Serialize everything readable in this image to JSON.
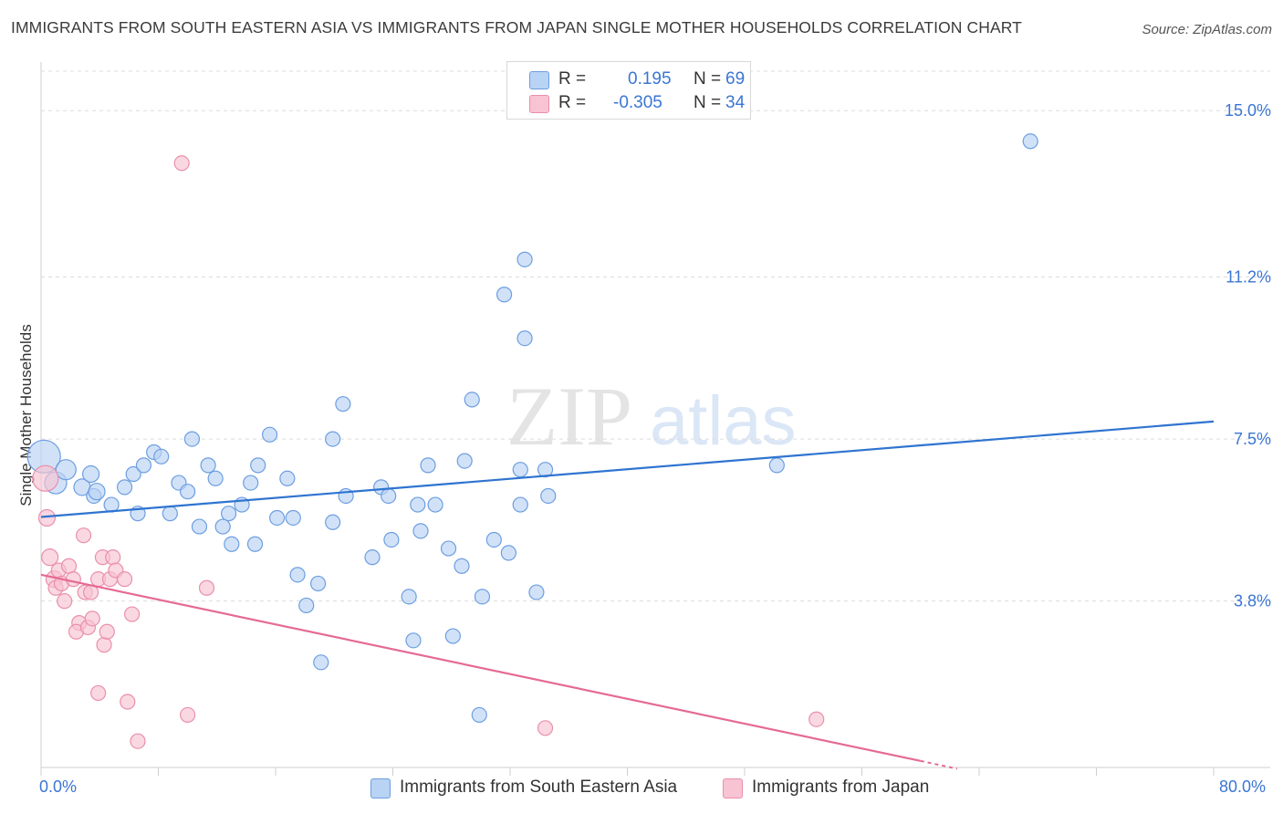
{
  "title": "IMMIGRANTS FROM SOUTH EASTERN ASIA VS IMMIGRANTS FROM JAPAN SINGLE MOTHER HOUSEHOLDS CORRELATION CHART",
  "source": "Source: ZipAtlas.com",
  "watermark": {
    "zip": "ZIP",
    "atlas": "atlas"
  },
  "colors": {
    "blue_fill": "#b8d3f4",
    "blue_stroke": "#6d9ee0",
    "blue_line": "#2f74d0",
    "pink_fill": "#f8c3d3",
    "pink_stroke": "#ea8fab",
    "pink_line": "#e56a95",
    "axis_label": "#3a76d4",
    "grid": "#dcdcdc"
  },
  "legend": {
    "rows": [
      {
        "r_label": "R =",
        "r_value": "0.195",
        "n_label": "N =",
        "n_value": "69",
        "color": "#b8d3f4",
        "border": "#6d9ee0"
      },
      {
        "r_label": "R =",
        "r_value": "-0.305",
        "n_label": "N =",
        "n_value": "34",
        "color": "#f8c3d3",
        "border": "#ea8fab"
      }
    ]
  },
  "bottom_legend": [
    {
      "label": "Immigrants from South Eastern Asia",
      "color": "#b8d3f4",
      "border": "#6d9ee0"
    },
    {
      "label": "Immigrants from Japan",
      "color": "#f8c3d3",
      "border": "#ea8fab"
    }
  ],
  "chart_data": {
    "type": "scatter",
    "title": "IMMIGRANTS FROM SOUTH EASTERN ASIA VS IMMIGRANTS FROM JAPAN SINGLE MOTHER HOUSEHOLDS CORRELATION CHART",
    "xlabel": "",
    "ylabel": "Single Mother Households",
    "xlim": [
      0,
      80
    ],
    "ylim": [
      0,
      15.9
    ],
    "x_tick_labels": [
      "0.0%",
      "80.0%"
    ],
    "y_ticks": [
      3.8,
      7.5,
      11.2,
      15.0
    ],
    "y_tick_labels": [
      "3.8%",
      "7.5%",
      "11.2%",
      "15.0%"
    ],
    "grid": "horizontal dashed",
    "legend_position": "top-center",
    "series": [
      {
        "name": "Immigrants from South Eastern Asia",
        "R": 0.195,
        "N": 69,
        "trend": {
          "x": [
            0,
            80
          ],
          "y": [
            5.72,
            7.9
          ]
        },
        "points": [
          [
            0.2,
            7.1,
            18
          ],
          [
            1.0,
            6.5,
            12
          ],
          [
            1.7,
            6.8,
            11
          ],
          [
            2.8,
            6.4,
            9
          ],
          [
            3.4,
            6.7,
            9
          ],
          [
            3.6,
            6.2,
            8
          ],
          [
            4.8,
            6.0,
            8
          ],
          [
            3.8,
            6.3,
            9
          ],
          [
            5.7,
            6.4,
            8
          ],
          [
            6.3,
            6.7,
            8
          ],
          [
            7.0,
            6.9,
            8
          ],
          [
            6.6,
            5.8,
            8
          ],
          [
            7.7,
            7.2,
            8
          ],
          [
            8.2,
            7.1,
            8
          ],
          [
            9.4,
            6.5,
            8
          ],
          [
            10.0,
            6.3,
            8
          ],
          [
            8.8,
            5.8,
            8
          ],
          [
            10.3,
            7.5,
            8
          ],
          [
            11.4,
            6.9,
            8
          ],
          [
            11.9,
            6.6,
            8
          ],
          [
            12.8,
            5.8,
            8
          ],
          [
            10.8,
            5.5,
            8
          ],
          [
            12.4,
            5.5,
            8
          ],
          [
            13.7,
            6.0,
            8
          ],
          [
            13.0,
            5.1,
            8
          ],
          [
            14.3,
            6.5,
            8
          ],
          [
            14.8,
            6.9,
            8
          ],
          [
            15.6,
            7.6,
            8
          ],
          [
            16.8,
            6.6,
            8
          ],
          [
            16.1,
            5.7,
            8
          ],
          [
            17.2,
            5.7,
            8
          ],
          [
            14.6,
            5.1,
            8
          ],
          [
            17.5,
            4.4,
            8
          ],
          [
            18.1,
            3.7,
            8
          ],
          [
            18.9,
            4.2,
            8
          ],
          [
            19.9,
            5.6,
            8
          ],
          [
            20.8,
            6.2,
            8
          ],
          [
            19.9,
            7.5,
            8
          ],
          [
            20.6,
            8.3,
            8
          ],
          [
            22.6,
            4.8,
            8
          ],
          [
            23.2,
            6.4,
            8
          ],
          [
            23.7,
            6.2,
            8
          ],
          [
            23.9,
            5.2,
            8
          ],
          [
            25.1,
            3.9,
            8
          ],
          [
            25.4,
            2.9,
            8
          ],
          [
            25.7,
            6.0,
            8
          ],
          [
            25.9,
            5.4,
            8
          ],
          [
            26.4,
            6.9,
            8
          ],
          [
            26.9,
            6.0,
            8
          ],
          [
            27.8,
            5.0,
            8
          ],
          [
            28.1,
            3.0,
            8
          ],
          [
            28.7,
            4.6,
            8
          ],
          [
            28.9,
            7.0,
            8
          ],
          [
            30.1,
            3.9,
            8
          ],
          [
            30.9,
            5.2,
            8
          ],
          [
            31.9,
            4.9,
            8
          ],
          [
            32.7,
            6.8,
            8
          ],
          [
            32.7,
            6.0,
            8
          ],
          [
            33.8,
            4.0,
            8
          ],
          [
            19.1,
            2.4,
            8
          ],
          [
            29.4,
            8.4,
            8
          ],
          [
            31.6,
            10.8,
            8
          ],
          [
            33.0,
            9.8,
            8
          ],
          [
            34.4,
            6.8,
            8
          ],
          [
            29.9,
            1.2,
            8
          ],
          [
            34.6,
            6.2,
            8
          ],
          [
            33.0,
            11.6,
            8
          ],
          [
            50.2,
            6.9,
            8
          ],
          [
            67.5,
            14.3,
            8
          ]
        ]
      },
      {
        "name": "Immigrants from Japan",
        "R": -0.305,
        "N": 34,
        "trend": {
          "x": [
            0,
            60
          ],
          "y": [
            4.4,
            0.15
          ]
        },
        "trend_dashed": {
          "x": [
            60,
            62.5
          ],
          "y": [
            0.15,
            -0.03
          ]
        },
        "points": [
          [
            0.3,
            6.6,
            14
          ],
          [
            0.4,
            5.7,
            9
          ],
          [
            0.6,
            4.8,
            9
          ],
          [
            0.9,
            4.3,
            9
          ],
          [
            1.2,
            4.5,
            8
          ],
          [
            1.0,
            4.1,
            8
          ],
          [
            1.4,
            4.2,
            8
          ],
          [
            1.6,
            3.8,
            8
          ],
          [
            1.9,
            4.6,
            8
          ],
          [
            2.2,
            4.3,
            8
          ],
          [
            2.6,
            3.3,
            8
          ],
          [
            2.4,
            3.1,
            8
          ],
          [
            2.9,
            5.3,
            8
          ],
          [
            3.0,
            4.0,
            8
          ],
          [
            3.2,
            3.2,
            8
          ],
          [
            3.4,
            4.0,
            8
          ],
          [
            3.5,
            3.4,
            8
          ],
          [
            3.9,
            4.3,
            8
          ],
          [
            4.2,
            4.8,
            8
          ],
          [
            4.3,
            2.8,
            8
          ],
          [
            4.5,
            3.1,
            8
          ],
          [
            4.7,
            4.3,
            8
          ],
          [
            4.9,
            4.8,
            8
          ],
          [
            5.1,
            4.5,
            8
          ],
          [
            5.7,
            4.3,
            8
          ],
          [
            3.9,
            1.7,
            8
          ],
          [
            6.2,
            3.5,
            8
          ],
          [
            5.9,
            1.5,
            8
          ],
          [
            6.6,
            0.6,
            8
          ],
          [
            9.6,
            13.8,
            8
          ],
          [
            10.0,
            1.2,
            8
          ],
          [
            11.3,
            4.1,
            8
          ],
          [
            34.4,
            0.9,
            8
          ],
          [
            52.9,
            1.1,
            8
          ]
        ]
      }
    ]
  }
}
